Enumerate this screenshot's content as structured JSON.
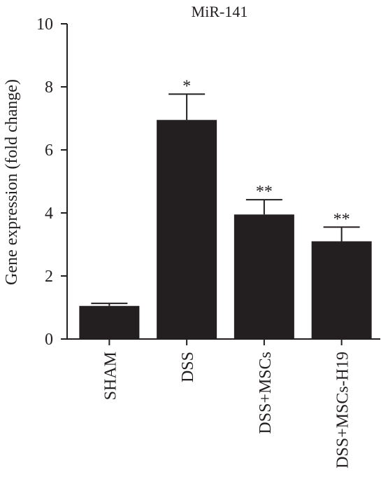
{
  "chart_data": {
    "type": "bar",
    "title": "MiR-141",
    "ylabel": "Gene expression (fold change)",
    "xlabel": "",
    "ylim": [
      0,
      10
    ],
    "yticks": [
      0,
      2,
      4,
      6,
      8,
      10
    ],
    "categories": [
      "SHAM",
      "DSS",
      "DSS+MSCs",
      "DSS+MSCs-H19"
    ],
    "values": [
      1.05,
      6.95,
      3.95,
      3.1
    ],
    "errors": [
      0.08,
      0.82,
      0.47,
      0.45
    ],
    "annotations": [
      "",
      "*",
      "**",
      "**"
    ],
    "bar_color": "#231f20",
    "grid": false,
    "legend": "none"
  }
}
